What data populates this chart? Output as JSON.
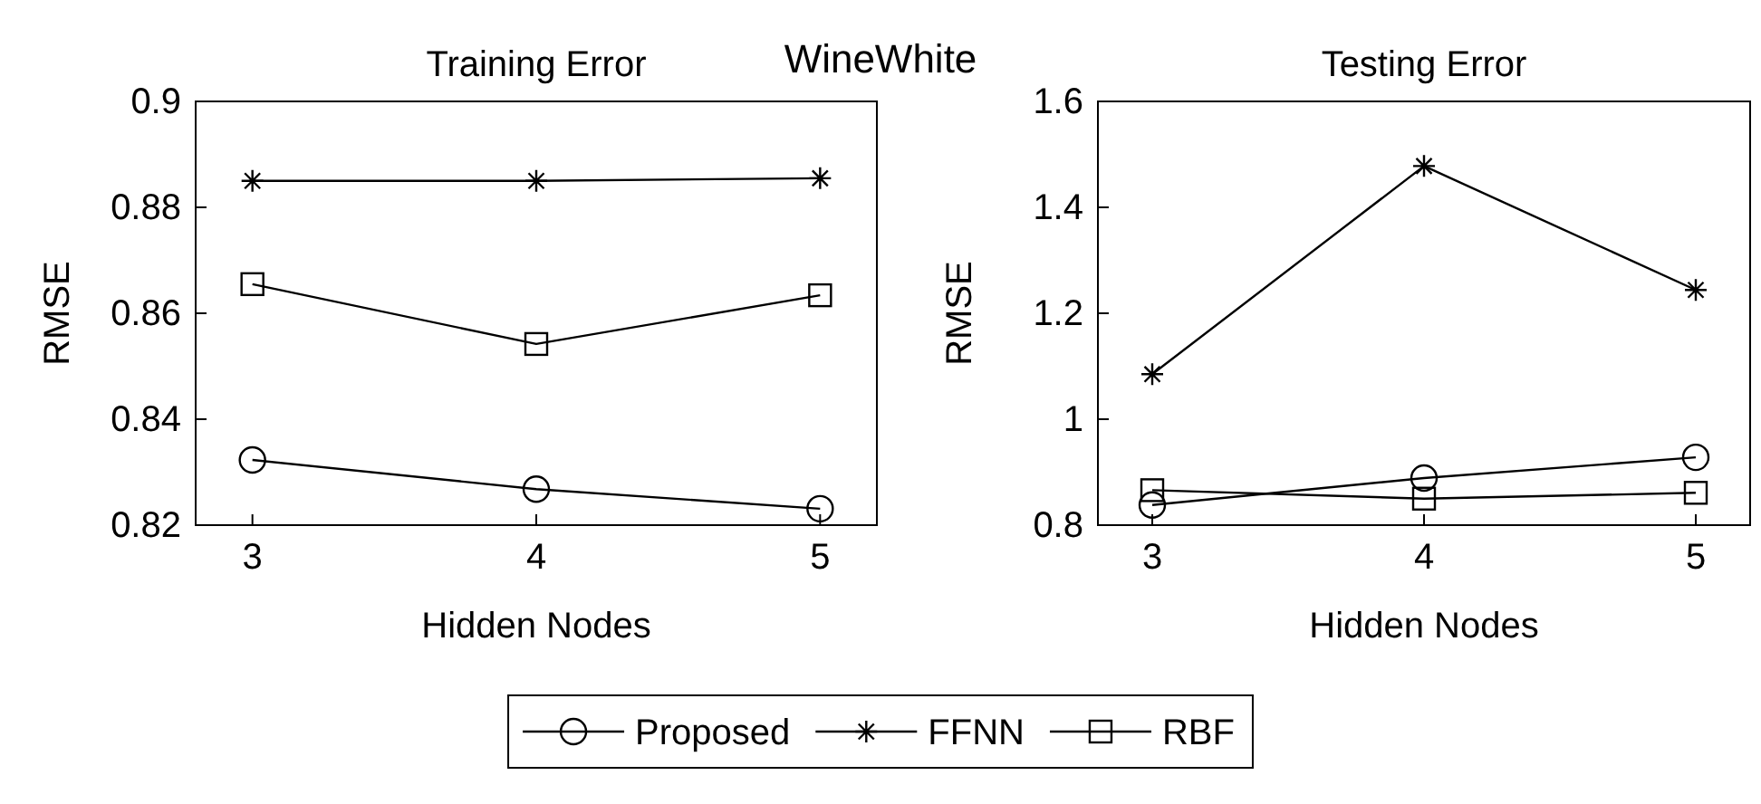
{
  "chart_data": [
    {
      "type": "line",
      "title": "Training Error",
      "annotations": [
        "WineWhite"
      ],
      "xlabel": "Hidden Nodes",
      "ylabel": "RMSE",
      "x": [
        3,
        4,
        5
      ],
      "xlim": [
        2.8,
        5.2
      ],
      "xticks": [
        3,
        4,
        5
      ],
      "ylim": [
        0.82,
        0.9
      ],
      "yticks": [
        0.82,
        0.84,
        0.86,
        0.88,
        0.9
      ],
      "legend": "bottom",
      "grid": false,
      "series": [
        {
          "name": "Proposed",
          "color": "#000000",
          "marker": "circle",
          "values": [
            0.8323,
            0.8268,
            0.8231
          ]
        },
        {
          "name": "FFNN",
          "color": "#000000",
          "marker": "cross",
          "values": [
            0.885,
            0.885,
            0.8855
          ]
        },
        {
          "name": "RBF",
          "color": "#000000",
          "marker": "square",
          "values": [
            0.8655,
            0.8542,
            0.8634
          ]
        }
      ]
    },
    {
      "type": "line",
      "title": "Testing Error",
      "xlabel": "Hidden Nodes",
      "ylabel": "RMSE",
      "x": [
        3,
        4,
        5
      ],
      "xlim": [
        2.8,
        5.2
      ],
      "xticks": [
        3,
        4,
        5
      ],
      "ylim": [
        0.8,
        1.6
      ],
      "yticks": [
        0.8,
        1,
        1.2,
        1.4,
        1.6
      ],
      "grid": false,
      "series": [
        {
          "color": "#000000",
          "marker": "circle",
          "values": [
            0.838,
            0.889,
            0.928
          ]
        },
        {
          "color": "#000000",
          "marker": "cross",
          "values": [
            1.085,
            1.478,
            1.244
          ]
        },
        {
          "color": "#000000",
          "marker": "square",
          "values": [
            0.866,
            0.85,
            0.861
          ]
        }
      ]
    }
  ]
}
